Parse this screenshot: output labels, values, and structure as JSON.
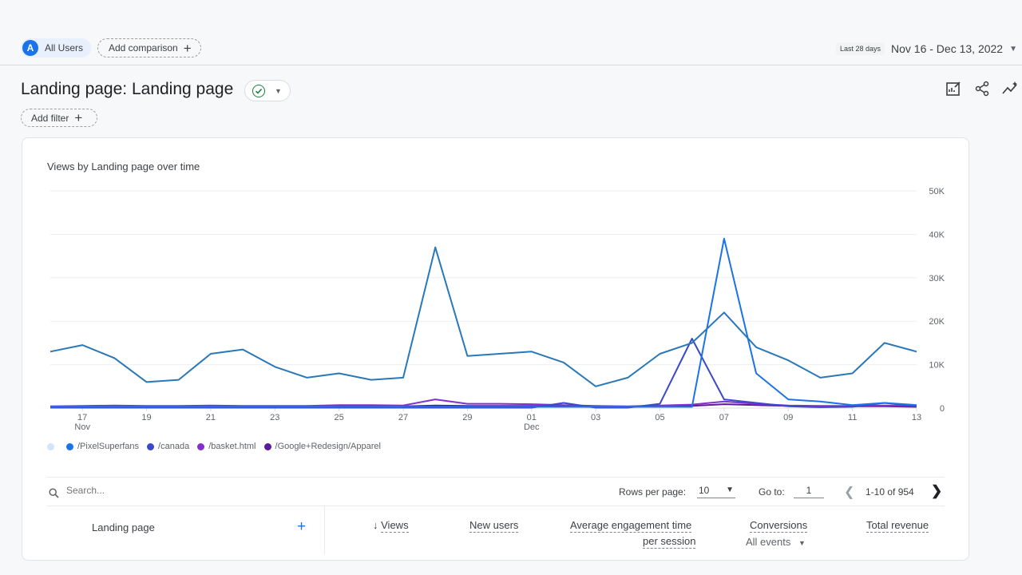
{
  "segment": {
    "avatar_letter": "A",
    "label": "All Users"
  },
  "comparison": {
    "label": "Add comparison"
  },
  "date_range": {
    "badge": "Last 28 days",
    "text": "Nov 16 - Dec 13, 2022"
  },
  "page": {
    "title": "Landing page: Landing page",
    "add_filter": "Add filter"
  },
  "toolbar": {
    "icons": [
      "customize-report-icon",
      "share-icon",
      "insights-icon"
    ]
  },
  "chart": {
    "title": "Views by Landing page over time",
    "legend": [
      {
        "label": "",
        "color": "#d2e3fc"
      },
      {
        "label": "/PixelSuperfans",
        "color": "#1a73e8"
      },
      {
        "label": "/canada",
        "color": "#3949c9"
      },
      {
        "label": "/basket.html",
        "color": "#8430ce"
      },
      {
        "label": "/Google+Redesign/Apparel",
        "color": "#5e1a9c"
      }
    ]
  },
  "chart_data": {
    "type": "line",
    "title": "Views by Landing page over time",
    "x": [
      "16",
      "17",
      "18",
      "19",
      "20",
      "21",
      "22",
      "23",
      "24",
      "25",
      "26",
      "27",
      "28",
      "29",
      "30",
      "01",
      "02",
      "03",
      "04",
      "05",
      "06",
      "07",
      "08",
      "09",
      "10",
      "11",
      "12",
      "13"
    ],
    "x_tick_labels": [
      "17",
      "19",
      "21",
      "23",
      "25",
      "27",
      "29",
      "01",
      "03",
      "05",
      "07",
      "09",
      "11",
      "13"
    ],
    "x_tick_sublabels": {
      "17": "Nov",
      "01": "Dec"
    },
    "y_ticks": [
      "0",
      "10K",
      "20K",
      "30K",
      "40K",
      "50K"
    ],
    "ylim": [
      0,
      50000
    ],
    "y_axis_side": "right",
    "grid": true,
    "legend_position": "bottom",
    "series": [
      {
        "color": "#2a78b8",
        "values": [
          13000,
          14500,
          11500,
          6000,
          6500,
          12500,
          13500,
          9500,
          7000,
          8000,
          6500,
          7000,
          37000,
          12000,
          12500,
          13000,
          10500,
          5000,
          7000,
          12500,
          15000,
          22000,
          14000,
          11000,
          7000,
          8000,
          15000,
          13000
        ]
      },
      {
        "name": "/PixelSuperfans",
        "color": "#1a73e8",
        "values": [
          300,
          300,
          300,
          300,
          300,
          300,
          300,
          300,
          300,
          300,
          300,
          300,
          300,
          300,
          300,
          300,
          300,
          300,
          300,
          300,
          300,
          39000,
          8000,
          2000,
          1500,
          700,
          1200,
          700
        ]
      },
      {
        "name": "/canada",
        "color": "#3949c9",
        "values": [
          100,
          100,
          100,
          100,
          100,
          100,
          100,
          100,
          100,
          100,
          100,
          100,
          100,
          100,
          100,
          100,
          1200,
          100,
          100,
          1000,
          16000,
          2000,
          1200,
          400,
          200,
          300,
          1200,
          400
        ]
      },
      {
        "name": "/basket.html",
        "color": "#8430ce",
        "values": [
          400,
          500,
          600,
          500,
          500,
          600,
          500,
          500,
          500,
          700,
          700,
          600,
          2000,
          1000,
          1000,
          900,
          700,
          500,
          400,
          600,
          800,
          1500,
          1000,
          600,
          500,
          500,
          600,
          500
        ]
      },
      {
        "name": "/Google+Redesign/Apparel",
        "color": "#5e1a9c",
        "values": [
          200,
          200,
          300,
          300,
          300,
          400,
          300,
          300,
          300,
          400,
          400,
          400,
          600,
          500,
          500,
          500,
          400,
          300,
          300,
          400,
          500,
          900,
          700,
          500,
          400,
          400,
          400,
          300
        ]
      }
    ]
  },
  "table": {
    "search_placeholder": "Search...",
    "rows_per_page_label": "Rows per page:",
    "rows_per_page_value": "10",
    "goto_label": "Go to:",
    "goto_value": "1",
    "range_text": "1-10 of 954",
    "dimension_header": "Landing page",
    "metrics": {
      "views": "Views",
      "new_users": "New users",
      "engagement_line1": "Average engagement time",
      "engagement_line2": "per session",
      "conversions": "Conversions",
      "conversions_sub": "All events",
      "revenue": "Total revenue"
    }
  }
}
